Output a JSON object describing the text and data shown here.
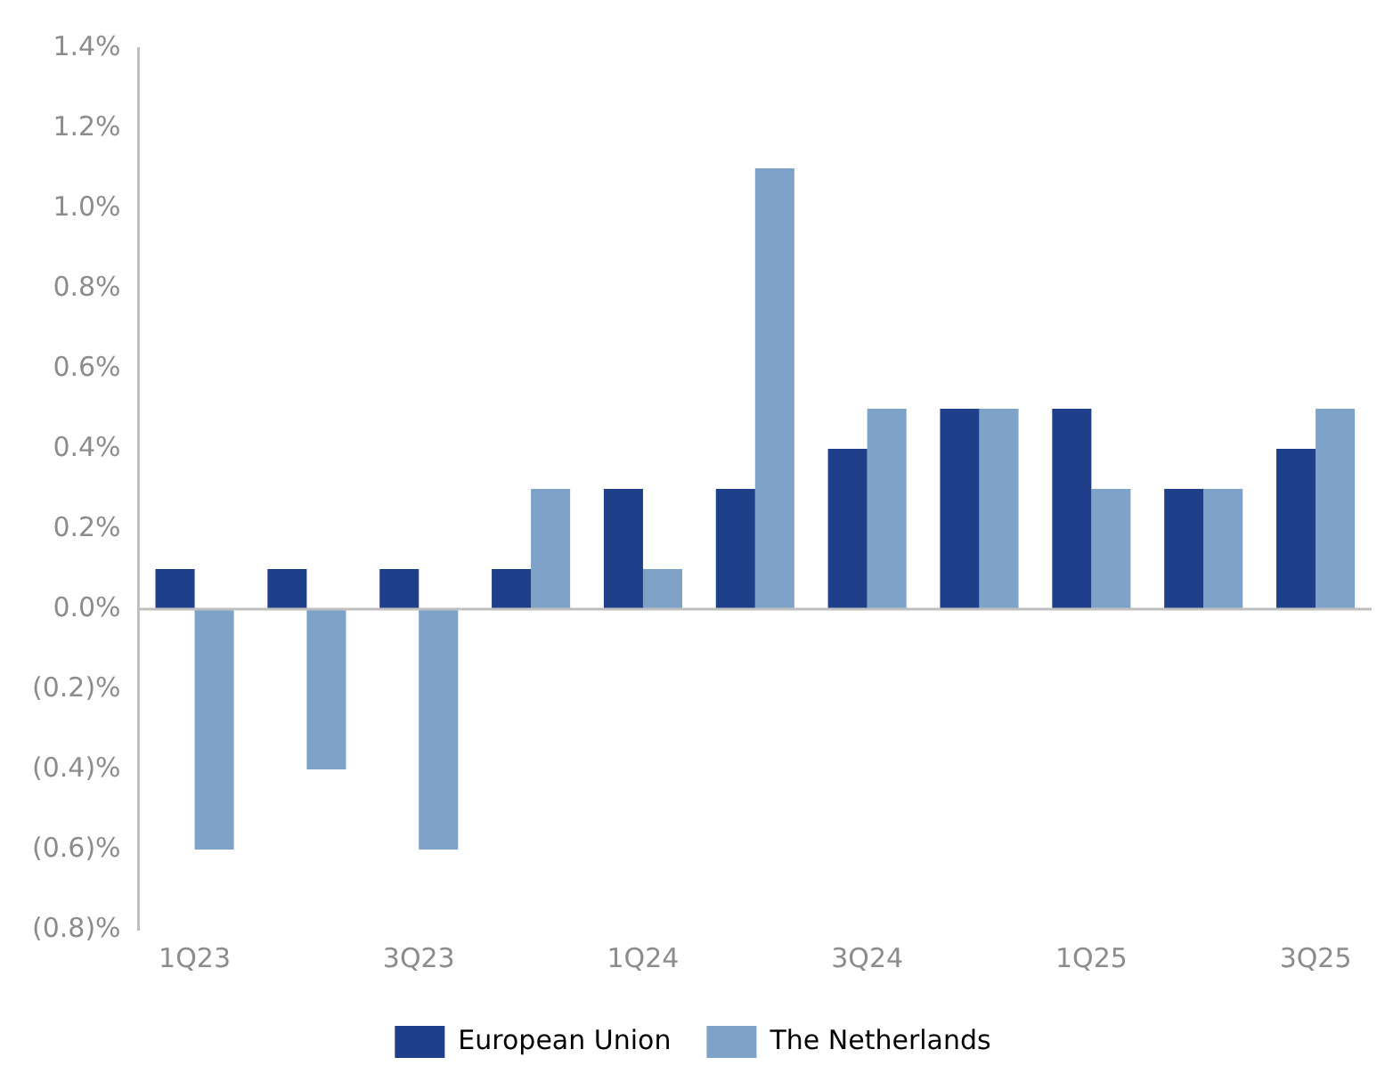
{
  "chart_data": {
    "type": "bar",
    "categories": [
      "1Q23",
      null,
      "3Q23",
      null,
      "1Q24",
      null,
      "3Q24",
      null,
      "1Q25",
      null,
      "3Q25"
    ],
    "series": [
      {
        "name": "European Union",
        "color": "#1f3f8a",
        "values": [
          0.1,
          0.1,
          0.1,
          0.1,
          0.3,
          0.3,
          0.4,
          0.5,
          0.5,
          0.3,
          0.4
        ]
      },
      {
        "name": "The Netherlands",
        "color": "#7fa3c8",
        "values": [
          -0.6,
          -0.4,
          -0.6,
          0.3,
          0.1,
          1.1,
          0.5,
          0.5,
          0.3,
          0.3,
          0.5
        ]
      }
    ],
    "ylim": [
      -0.8,
      1.4
    ],
    "yticks": [
      {
        "value": -0.8,
        "label": "(0.8)%"
      },
      {
        "value": -0.6,
        "label": "(0.6)%"
      },
      {
        "value": -0.4,
        "label": "(0.4)%"
      },
      {
        "value": -0.2,
        "label": "(0.2)%"
      },
      {
        "value": 0,
        "label": "0.0%"
      },
      {
        "value": 0.2,
        "label": "0.2%"
      },
      {
        "value": 0.4,
        "label": "0.4%"
      },
      {
        "value": 0.6,
        "label": "0.6%"
      },
      {
        "value": 0.8,
        "label": "0.8%"
      },
      {
        "value": 1.0,
        "label": "1.0%"
      },
      {
        "value": 1.2,
        "label": "1.2%"
      },
      {
        "value": 1.4,
        "label": "1.4%"
      }
    ],
    "ref_lines": [
      {
        "axis": "y",
        "value": 0,
        "color": "#bfbfbf"
      }
    ],
    "grid": false,
    "legend": "bottom"
  }
}
